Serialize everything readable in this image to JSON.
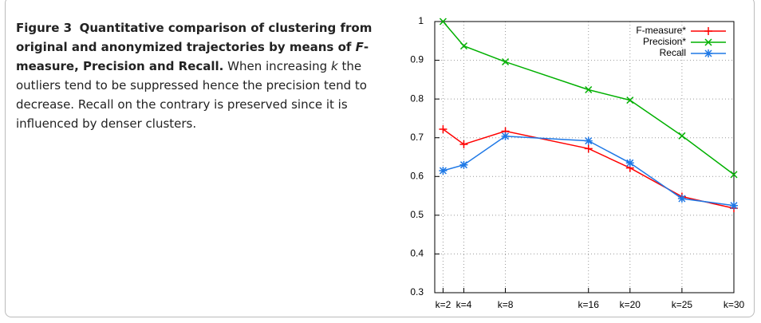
{
  "caption": [
    "Figure 3",
    "Quantitative comparison of clustering from original and anonymized trajectories by means of",
    "F",
    "-measure, Precision and Recall.",
    "When increasing",
    "k",
    "the outliers tend to be suppressed hence the precision tend to decrease. Recall on the contrary is preserved since it is influenced by denser clusters."
  ],
  "chart_data": {
    "type": "line",
    "x": [
      2,
      4,
      8,
      16,
      20,
      25,
      30
    ],
    "series": [
      {
        "name": "F-measure*",
        "color": "#ff0000",
        "marker": "plus",
        "values": [
          0.722,
          0.683,
          0.717,
          0.672,
          0.622,
          0.548,
          0.518
        ]
      },
      {
        "name": "Precision*",
        "color": "#00b000",
        "marker": "cross",
        "values": [
          1.0,
          0.937,
          0.896,
          0.824,
          0.797,
          0.705,
          0.605
        ]
      },
      {
        "name": "Recall",
        "color": "#1e78e6",
        "marker": "star",
        "values": [
          0.615,
          0.63,
          0.704,
          0.692,
          0.635,
          0.543,
          0.525
        ]
      }
    ],
    "xlim": [
      1.2,
      30
    ],
    "xticks": [
      {
        "value": 2,
        "label": "k=2"
      },
      {
        "value": 4,
        "label": "k=4"
      },
      {
        "value": 8,
        "label": "k=8"
      },
      {
        "value": 16,
        "label": "k=16"
      },
      {
        "value": 20,
        "label": "k=20"
      },
      {
        "value": 25,
        "label": "k=25"
      },
      {
        "value": 30,
        "label": "k=30"
      }
    ],
    "ylim": [
      0.3,
      1
    ],
    "yticks": [
      0.3,
      0.4,
      0.5,
      0.6,
      0.7,
      0.8,
      0.9,
      1
    ],
    "grid": true,
    "legend": "top-right"
  }
}
